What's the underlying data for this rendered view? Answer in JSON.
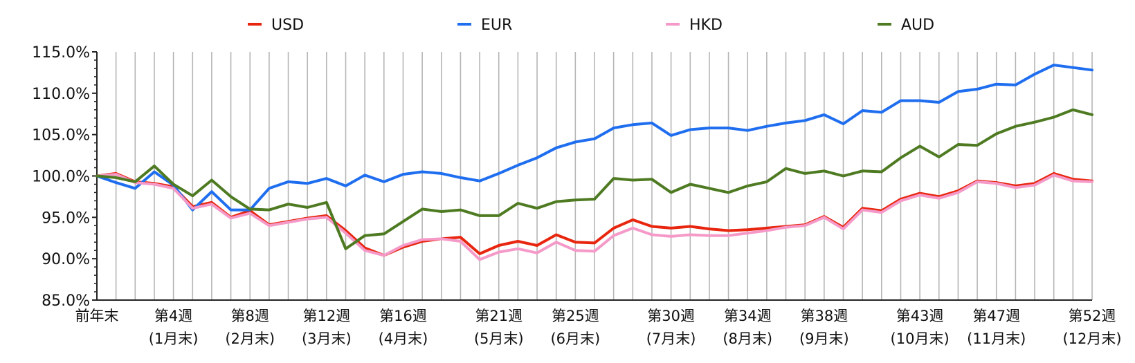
{
  "chart_data": {
    "type": "line",
    "title": "",
    "xlabel": "",
    "ylabel": "",
    "ylim": [
      85,
      115
    ],
    "ytick_step": 5,
    "y_format": "percent_1dp",
    "grid": {
      "vertical": true,
      "horizontal": false
    },
    "legend_position": "top",
    "x_count": 53,
    "x_tick_labels": [
      {
        "index": 0,
        "label": "前年末",
        "sub": ""
      },
      {
        "index": 4,
        "label": "第4週",
        "sub": "(1月末)"
      },
      {
        "index": 8,
        "label": "第8週",
        "sub": "(2月末)"
      },
      {
        "index": 12,
        "label": "第12週",
        "sub": "(3月末)"
      },
      {
        "index": 16,
        "label": "第16週",
        "sub": "(4月末)"
      },
      {
        "index": 21,
        "label": "第21週",
        "sub": "(5月末)"
      },
      {
        "index": 25,
        "label": "第25週",
        "sub": "(6月末)"
      },
      {
        "index": 30,
        "label": "第30週",
        "sub": "(7月末)"
      },
      {
        "index": 34,
        "label": "第34週",
        "sub": "(8月末)"
      },
      {
        "index": 38,
        "label": "第38週",
        "sub": "(9月末)"
      },
      {
        "index": 43,
        "label": "第43週",
        "sub": "(10月末)"
      },
      {
        "index": 47,
        "label": "第47週",
        "sub": "(11月末)"
      },
      {
        "index": 52,
        "label": "第52週",
        "sub": "(12月末)"
      }
    ],
    "series": [
      {
        "name": "USD",
        "color": "#e8260f",
        "values": [
          100.0,
          100.3,
          99.3,
          99.1,
          98.7,
          96.3,
          96.8,
          95.0,
          95.8,
          94.1,
          94.5,
          94.9,
          95.2,
          93.4,
          91.3,
          90.4,
          91.4,
          92.1,
          92.4,
          92.6,
          90.6,
          91.6,
          92.1,
          91.6,
          92.9,
          92.0,
          91.9,
          93.7,
          94.7,
          93.9,
          93.7,
          93.9,
          93.6,
          93.4,
          93.5,
          93.7,
          93.9,
          94.1,
          95.1,
          93.8,
          96.1,
          95.8,
          97.2,
          97.9,
          97.5,
          98.2,
          99.4,
          99.2,
          98.8,
          99.1,
          100.3,
          99.6,
          99.4
        ]
      },
      {
        "name": "EUR",
        "color": "#1f6ef0",
        "values": [
          100.0,
          99.2,
          98.5,
          100.5,
          98.9,
          95.9,
          98.1,
          95.9,
          95.9,
          98.5,
          99.3,
          99.1,
          99.7,
          98.8,
          100.1,
          99.3,
          100.2,
          100.5,
          100.3,
          99.8,
          99.4,
          100.3,
          101.3,
          102.2,
          103.4,
          104.1,
          104.5,
          105.8,
          106.2,
          106.4,
          104.9,
          105.6,
          105.8,
          105.8,
          105.5,
          106.0,
          106.4,
          106.7,
          107.4,
          106.3,
          107.9,
          107.7,
          109.1,
          109.1,
          108.9,
          110.2,
          110.5,
          111.1,
          111.0,
          112.3,
          113.4,
          113.1,
          112.8
        ]
      },
      {
        "name": "HKD",
        "color": "#f59ac8",
        "values": [
          100.0,
          100.2,
          99.2,
          99.0,
          98.5,
          96.1,
          96.6,
          94.9,
          95.5,
          94.0,
          94.4,
          94.8,
          95.0,
          93.1,
          91.0,
          90.4,
          91.6,
          92.3,
          92.4,
          92.1,
          89.9,
          90.8,
          91.2,
          90.7,
          92.0,
          91.0,
          90.9,
          92.8,
          93.7,
          92.9,
          92.7,
          92.9,
          92.8,
          92.8,
          93.1,
          93.4,
          93.8,
          94.0,
          95.0,
          93.6,
          95.9,
          95.6,
          97.0,
          97.7,
          97.3,
          98.0,
          99.3,
          99.1,
          98.6,
          98.9,
          100.1,
          99.4,
          99.3
        ]
      },
      {
        "name": "AUD",
        "color": "#4e7a22",
        "values": [
          100.0,
          99.8,
          99.3,
          101.2,
          99.0,
          97.6,
          99.5,
          97.5,
          96.0,
          95.9,
          96.6,
          96.2,
          96.8,
          91.2,
          92.8,
          93.0,
          94.5,
          96.0,
          95.7,
          95.9,
          95.2,
          95.2,
          96.7,
          96.1,
          96.9,
          97.1,
          97.2,
          99.7,
          99.5,
          99.6,
          98.0,
          99.0,
          98.5,
          98.0,
          98.8,
          99.3,
          100.9,
          100.3,
          100.6,
          100.0,
          100.6,
          100.5,
          102.2,
          103.6,
          102.3,
          103.8,
          103.7,
          105.1,
          106.0,
          106.5,
          107.1,
          108.0,
          107.4
        ]
      }
    ]
  }
}
